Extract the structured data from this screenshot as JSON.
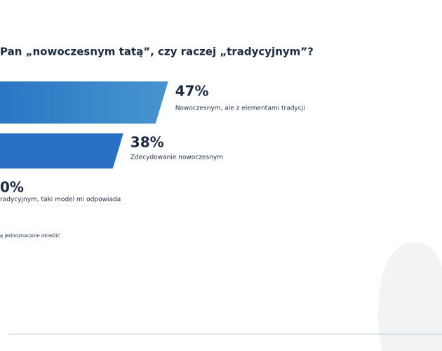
{
  "chart_data": {
    "type": "bar",
    "orientation": "horizontal",
    "title": "Pan „nowoczesnym tatą”, czy raczej „tradycyjnym”?",
    "categories": [
      "Nowoczesnym, ale z elementami tradycji",
      "Zdecydowanie nowoczesnym",
      "radycyjnym, taki model mi odpowiada",
      "ę jednoznacznie określić"
    ],
    "values": [
      47,
      38,
      0,
      null
    ],
    "value_labels": [
      "47%",
      "38%",
      "0%",
      null
    ],
    "colors": [
      "#1d6cc0",
      "#2a70c4"
    ]
  }
}
